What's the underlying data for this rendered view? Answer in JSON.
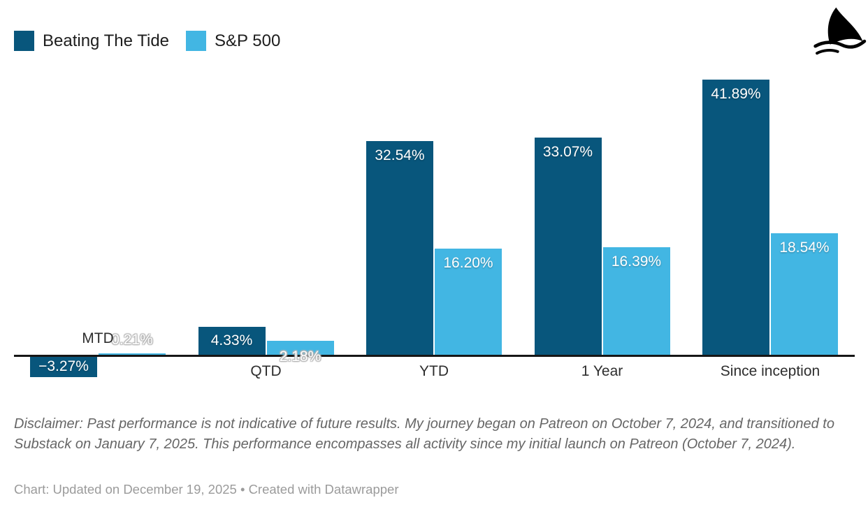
{
  "legend": {
    "items": [
      {
        "label": "Beating The Tide",
        "color": "#08567C"
      },
      {
        "label": "S&P 500",
        "color": "#42B6E3"
      }
    ]
  },
  "logo": {
    "name": "shark-fin-logo"
  },
  "chart_data": {
    "type": "bar",
    "categories": [
      "MTD",
      "QTD",
      "YTD",
      "1 Year",
      "Since inception"
    ],
    "series": [
      {
        "name": "Beating The Tide",
        "color": "#08567C",
        "values": [
          -3.27,
          4.33,
          32.54,
          33.07,
          41.89
        ],
        "labels": [
          "−3.27%",
          "4.33%",
          "32.54%",
          "33.07%",
          "41.89%"
        ]
      },
      {
        "name": "S&P 500",
        "color": "#42B6E3",
        "values": [
          0.21,
          2.18,
          16.2,
          16.39,
          18.54
        ],
        "labels": [
          "0.21%",
          "2.18%",
          "16.20%",
          "16.39%",
          "18.54%"
        ]
      }
    ],
    "value_format": "percent",
    "ylim": [
      -5,
      45
    ],
    "grid": false,
    "baseline": 0,
    "legend_position": "top-left"
  },
  "footer": {
    "disclaimer": "Disclaimer: Past performance is not indicative of future results. My journey began on Patreon on October 7, 2024, and transitioned to Substack on January 7, 2025. This performance encompasses all activity since my initial launch on Patreon (October 7, 2024).",
    "credit": "Chart: Updated on December 19, 2025 • Created with Datawrapper"
  }
}
